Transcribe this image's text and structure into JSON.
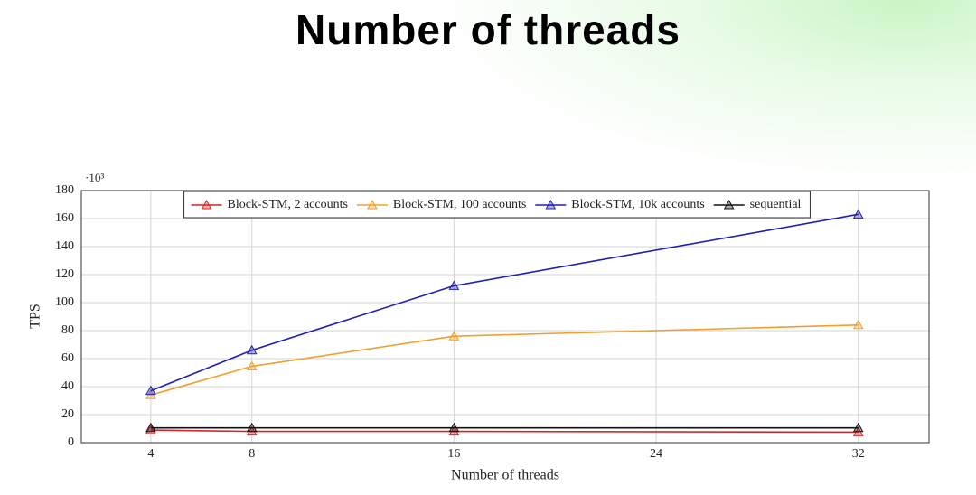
{
  "chart_data": {
    "type": "line",
    "title": "Number of threads",
    "x_label": "Number of threads",
    "y_label": "TPS",
    "y_multiplier": "·10³",
    "x": [
      4,
      8,
      16,
      32
    ],
    "xlim": [
      1.25,
      34.8
    ],
    "xticks": [
      4,
      8,
      16,
      24,
      32
    ],
    "ylim": [
      0,
      180
    ],
    "yticks": [
      0,
      20,
      40,
      60,
      80,
      100,
      120,
      140,
      160,
      180
    ],
    "grid": true,
    "legend": "top",
    "series": [
      {
        "name": "Block-STM, 2 accounts",
        "color": "#d62728",
        "values": [
          9,
          8,
          8,
          7.5
        ]
      },
      {
        "name": "Block-STM, 100 accounts",
        "color": "#f0a030",
        "values": [
          34,
          54.5,
          76,
          84
        ]
      },
      {
        "name": "Block-STM, 10k accounts",
        "color": "#2020b0",
        "values": [
          37,
          66,
          112,
          163
        ]
      },
      {
        "name": "sequential",
        "color": "#111111",
        "values": [
          10.5,
          10.5,
          10.5,
          10.5
        ]
      }
    ]
  }
}
